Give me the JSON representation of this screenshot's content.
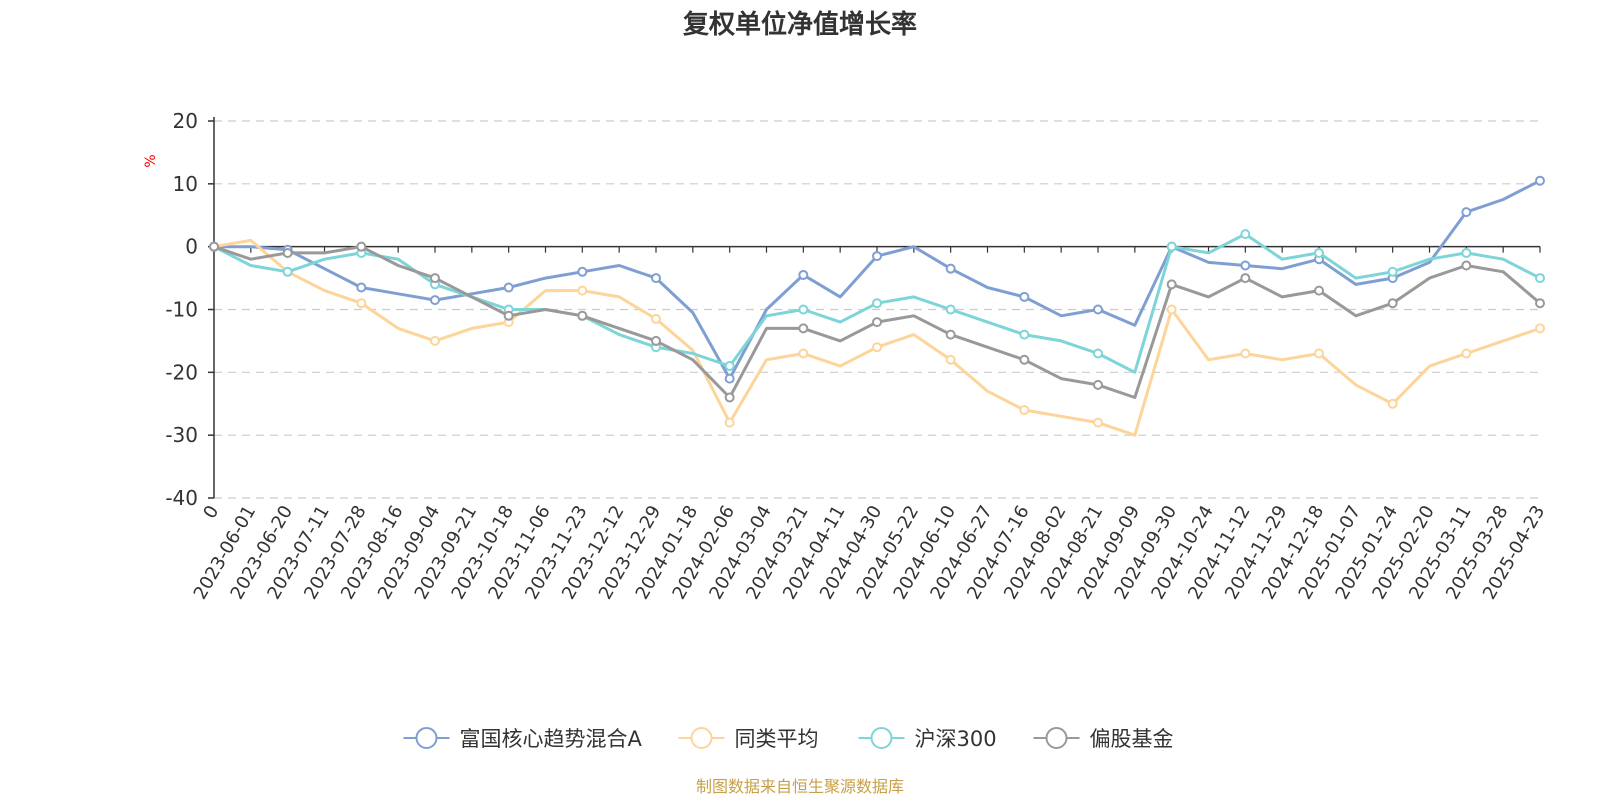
{
  "chart_data": {
    "type": "line",
    "title": "复权单位净值增长率",
    "ylabel": "%",
    "ylim": [
      -40,
      20
    ],
    "yticks": [
      20,
      10,
      0,
      -10,
      -20,
      -30,
      -40
    ],
    "xlabels": [
      "0",
      "2023-06-01",
      "2023-06-20",
      "2023-07-11",
      "2023-07-28",
      "2023-08-16",
      "2023-09-04",
      "2023-09-21",
      "2023-10-18",
      "2023-11-06",
      "2023-11-23",
      "2023-12-12",
      "2023-12-29",
      "2024-01-18",
      "2024-02-06",
      "2024-03-04",
      "2024-03-21",
      "2024-04-11",
      "2024-04-30",
      "2024-05-22",
      "2024-06-10",
      "2024-06-27",
      "2024-07-16",
      "2024-08-02",
      "2024-08-21",
      "2024-09-09",
      "2024-09-30",
      "2024-10-24",
      "2024-11-12",
      "2024-11-29",
      "2024-12-18",
      "2025-01-07",
      "2025-01-24",
      "2025-02-20",
      "2025-03-11",
      "2025-03-28",
      "2025-04-23"
    ],
    "legend_position": "bottom",
    "grid": true,
    "series": [
      {
        "name": "富国核心趋势混合A",
        "color": "#7f9fd3",
        "values": [
          0,
          0,
          -0.5,
          -3.5,
          -6.5,
          -7.5,
          -8.5,
          -7.5,
          -6.5,
          -5,
          -4,
          -3,
          -5,
          -10.5,
          -21,
          -10,
          -4.5,
          -8,
          -1.5,
          0,
          -3.5,
          -6.5,
          -8,
          -11,
          -10,
          -12.5,
          0,
          -2.5,
          -3,
          -3.5,
          -2,
          -6,
          -5,
          -2.5,
          5.5,
          7.5,
          10.5
        ]
      },
      {
        "name": "同类平均",
        "color": "#fdd49a",
        "values": [
          0,
          1,
          -4,
          -7,
          -9,
          -13,
          -15,
          -13,
          -12,
          -7,
          -7,
          -8,
          -11.5,
          -16.5,
          -28,
          -18,
          -17,
          -19,
          -16,
          -14,
          -18,
          -23,
          -26,
          -27,
          -28,
          -30,
          -10,
          -18,
          -17,
          -18,
          -17,
          -22,
          -25,
          -19,
          -17,
          -15,
          -13
        ]
      },
      {
        "name": "沪深300",
        "color": "#7dd5d8",
        "values": [
          0,
          -3,
          -4,
          -2,
          -1,
          -2,
          -6,
          -8,
          -10,
          -10,
          -11,
          -14,
          -16,
          -17,
          -19,
          -11,
          -10,
          -12,
          -9,
          -8,
          -10,
          -12,
          -14,
          -15,
          -17,
          -20,
          0,
          -1,
          2,
          -2,
          -1,
          -5,
          -4,
          -2,
          -1,
          -2,
          -5
        ]
      },
      {
        "name": "偏股基金",
        "color": "#999999",
        "values": [
          0,
          -2,
          -1,
          -1,
          0,
          -3,
          -5,
          -8,
          -11,
          -10,
          -11,
          -13,
          -15,
          -18,
          -24,
          -13,
          -13,
          -15,
          -12,
          -11,
          -14,
          -16,
          -18,
          -21,
          -22,
          -24,
          -6,
          -8,
          -5,
          -8,
          -7,
          -11,
          -9,
          -5,
          -3,
          -4,
          -9
        ]
      }
    ]
  },
  "source_note": "制图数据来自恒生聚源数据库"
}
